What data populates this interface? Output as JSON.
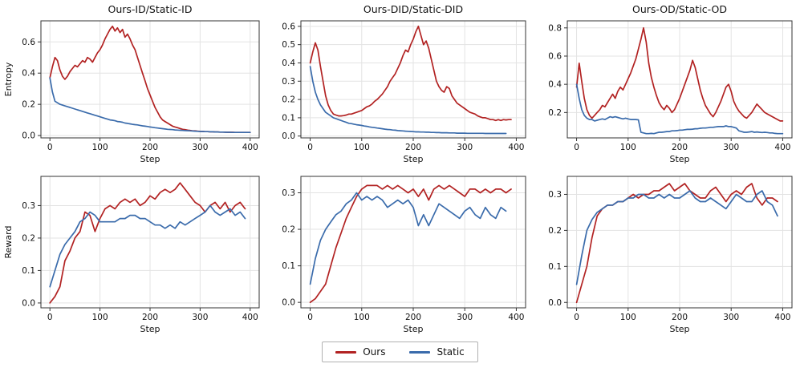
{
  "colors": {
    "ours": "#b22222",
    "static": "#3a6bab",
    "grid": "#e3e3e3",
    "frame": "#333333",
    "text": "#111111"
  },
  "legend": {
    "items": [
      {
        "label": "Ours",
        "color": "#b22222"
      },
      {
        "label": "Static",
        "color": "#3a6bab"
      }
    ]
  },
  "chart_data": [
    {
      "type": "line",
      "title": "Ours-ID/Static-ID",
      "xlabel": "Step",
      "ylabel": "Entropy",
      "xlim": [
        -18,
        418
      ],
      "ylim": [
        -0.015,
        0.735
      ],
      "xticks": [
        0,
        100,
        200,
        300,
        400
      ],
      "yticks": [
        0.0,
        0.2,
        0.4,
        0.6
      ],
      "series": [
        {
          "name": "Ours",
          "color": "#b22222",
          "x_start": 0,
          "x_step": 5,
          "values": [
            0.37,
            0.44,
            0.5,
            0.48,
            0.42,
            0.38,
            0.36,
            0.38,
            0.41,
            0.43,
            0.45,
            0.44,
            0.46,
            0.48,
            0.47,
            0.5,
            0.49,
            0.47,
            0.5,
            0.53,
            0.55,
            0.58,
            0.62,
            0.65,
            0.68,
            0.7,
            0.67,
            0.69,
            0.66,
            0.68,
            0.63,
            0.65,
            0.62,
            0.58,
            0.55,
            0.5,
            0.45,
            0.4,
            0.35,
            0.3,
            0.26,
            0.22,
            0.18,
            0.15,
            0.12,
            0.1,
            0.09,
            0.08,
            0.07,
            0.06,
            0.055,
            0.05,
            0.045,
            0.04,
            0.038,
            0.035,
            0.033,
            0.03,
            0.03,
            0.028,
            0.027,
            0.026,
            0.025,
            0.025,
            0.024,
            0.024,
            0.023,
            0.023,
            0.022,
            0.022,
            0.022,
            0.021,
            0.021,
            0.021,
            0.02,
            0.02,
            0.02,
            0.02,
            0.02,
            0.02,
            0.02
          ]
        },
        {
          "name": "Static",
          "color": "#3a6bab",
          "x_start": 0,
          "x_step": 5,
          "values": [
            0.37,
            0.28,
            0.22,
            0.21,
            0.2,
            0.195,
            0.19,
            0.185,
            0.18,
            0.175,
            0.17,
            0.165,
            0.16,
            0.155,
            0.15,
            0.145,
            0.14,
            0.135,
            0.13,
            0.125,
            0.12,
            0.115,
            0.11,
            0.105,
            0.1,
            0.098,
            0.095,
            0.09,
            0.088,
            0.085,
            0.08,
            0.078,
            0.075,
            0.072,
            0.07,
            0.068,
            0.065,
            0.062,
            0.06,
            0.058,
            0.055,
            0.053,
            0.05,
            0.048,
            0.046,
            0.044,
            0.042,
            0.04,
            0.039,
            0.038,
            0.036,
            0.035,
            0.034,
            0.033,
            0.032,
            0.031,
            0.03,
            0.029,
            0.028,
            0.027,
            0.026,
            0.026,
            0.025,
            0.025,
            0.024,
            0.024,
            0.023,
            0.023,
            0.022,
            0.022,
            0.021,
            0.021,
            0.021,
            0.02,
            0.02,
            0.02,
            0.02,
            0.02,
            0.02,
            0.02,
            0.02
          ]
        }
      ]
    },
    {
      "type": "line",
      "title": "Ours-DID/Static-DID",
      "xlabel": "Step",
      "ylabel": "",
      "xlim": [
        -18,
        418
      ],
      "ylim": [
        -0.01,
        0.63
      ],
      "xticks": [
        0,
        100,
        200,
        300,
        400
      ],
      "yticks": [
        0.0,
        0.1,
        0.2,
        0.3,
        0.4,
        0.5,
        0.6
      ],
      "series": [
        {
          "name": "Ours",
          "color": "#b22222",
          "x_start": 0,
          "x_step": 5,
          "values": [
            0.4,
            0.46,
            0.51,
            0.47,
            0.38,
            0.3,
            0.22,
            0.17,
            0.14,
            0.12,
            0.115,
            0.11,
            0.11,
            0.112,
            0.115,
            0.12,
            0.12,
            0.125,
            0.13,
            0.135,
            0.14,
            0.15,
            0.16,
            0.165,
            0.175,
            0.19,
            0.2,
            0.215,
            0.23,
            0.25,
            0.27,
            0.3,
            0.32,
            0.34,
            0.37,
            0.4,
            0.44,
            0.47,
            0.46,
            0.5,
            0.53,
            0.57,
            0.6,
            0.55,
            0.5,
            0.52,
            0.48,
            0.42,
            0.36,
            0.3,
            0.27,
            0.25,
            0.24,
            0.27,
            0.26,
            0.22,
            0.2,
            0.18,
            0.17,
            0.16,
            0.15,
            0.14,
            0.13,
            0.125,
            0.12,
            0.11,
            0.105,
            0.1,
            0.1,
            0.095,
            0.09,
            0.09,
            0.085,
            0.09,
            0.085,
            0.09,
            0.088,
            0.09,
            0.09
          ]
        },
        {
          "name": "Static",
          "color": "#3a6bab",
          "x_start": 0,
          "x_step": 5,
          "values": [
            0.38,
            0.3,
            0.24,
            0.2,
            0.17,
            0.15,
            0.13,
            0.12,
            0.11,
            0.1,
            0.095,
            0.09,
            0.085,
            0.08,
            0.075,
            0.07,
            0.068,
            0.065,
            0.062,
            0.06,
            0.058,
            0.055,
            0.053,
            0.05,
            0.048,
            0.046,
            0.044,
            0.042,
            0.04,
            0.038,
            0.036,
            0.035,
            0.033,
            0.032,
            0.03,
            0.029,
            0.028,
            0.027,
            0.026,
            0.025,
            0.024,
            0.023,
            0.023,
            0.022,
            0.022,
            0.021,
            0.021,
            0.02,
            0.02,
            0.019,
            0.019,
            0.018,
            0.018,
            0.018,
            0.017,
            0.017,
            0.017,
            0.016,
            0.016,
            0.016,
            0.016,
            0.015,
            0.015,
            0.015,
            0.015,
            0.015,
            0.015,
            0.015,
            0.014,
            0.014,
            0.014,
            0.014,
            0.014,
            0.014,
            0.014,
            0.014,
            0.014
          ]
        }
      ]
    },
    {
      "type": "line",
      "title": "Ours-OD/Static-OD",
      "xlabel": "Step",
      "ylabel": "",
      "xlim": [
        -18,
        418
      ],
      "ylim": [
        0.02,
        0.85
      ],
      "xticks": [
        0,
        100,
        200,
        300,
        400
      ],
      "yticks": [
        0.2,
        0.4,
        0.6,
        0.8
      ],
      "series": [
        {
          "name": "Ours",
          "color": "#b22222",
          "x_start": 0,
          "x_step": 5,
          "values": [
            0.38,
            0.55,
            0.42,
            0.3,
            0.22,
            0.18,
            0.16,
            0.18,
            0.2,
            0.22,
            0.25,
            0.24,
            0.27,
            0.3,
            0.33,
            0.3,
            0.35,
            0.38,
            0.36,
            0.4,
            0.44,
            0.48,
            0.53,
            0.58,
            0.65,
            0.72,
            0.8,
            0.7,
            0.55,
            0.45,
            0.38,
            0.32,
            0.27,
            0.24,
            0.22,
            0.25,
            0.23,
            0.2,
            0.22,
            0.26,
            0.3,
            0.35,
            0.4,
            0.45,
            0.5,
            0.57,
            0.52,
            0.44,
            0.36,
            0.3,
            0.25,
            0.22,
            0.19,
            0.17,
            0.2,
            0.24,
            0.28,
            0.33,
            0.38,
            0.4,
            0.35,
            0.28,
            0.24,
            0.21,
            0.19,
            0.17,
            0.16,
            0.18,
            0.2,
            0.23,
            0.26,
            0.24,
            0.22,
            0.2,
            0.19,
            0.18,
            0.17,
            0.16,
            0.15,
            0.14,
            0.14
          ]
        },
        {
          "name": "Static",
          "color": "#3a6bab",
          "x_start": 0,
          "x_step": 5,
          "values": [
            0.4,
            0.3,
            0.22,
            0.18,
            0.16,
            0.15,
            0.15,
            0.14,
            0.145,
            0.15,
            0.155,
            0.15,
            0.16,
            0.17,
            0.165,
            0.17,
            0.165,
            0.16,
            0.155,
            0.16,
            0.155,
            0.15,
            0.15,
            0.15,
            0.148,
            0.06,
            0.055,
            0.05,
            0.05,
            0.052,
            0.05,
            0.055,
            0.06,
            0.06,
            0.062,
            0.065,
            0.065,
            0.07,
            0.07,
            0.072,
            0.075,
            0.075,
            0.078,
            0.08,
            0.08,
            0.082,
            0.085,
            0.085,
            0.088,
            0.09,
            0.09,
            0.092,
            0.095,
            0.095,
            0.098,
            0.1,
            0.1,
            0.1,
            0.105,
            0.1,
            0.1,
            0.095,
            0.09,
            0.07,
            0.065,
            0.06,
            0.06,
            0.062,
            0.065,
            0.06,
            0.062,
            0.06,
            0.058,
            0.06,
            0.058,
            0.055,
            0.055,
            0.052,
            0.05,
            0.05,
            0.05
          ]
        }
      ]
    },
    {
      "type": "line",
      "title": "",
      "xlabel": "Step",
      "ylabel": "Reward",
      "xlim": [
        -18,
        418
      ],
      "ylim": [
        -0.015,
        0.39
      ],
      "xticks": [
        0,
        100,
        200,
        300,
        400
      ],
      "yticks": [
        0.0,
        0.1,
        0.2,
        0.3
      ],
      "series": [
        {
          "name": "Ours",
          "color": "#b22222",
          "x_start": 0,
          "x_step": 10,
          "values": [
            0.0,
            0.02,
            0.05,
            0.13,
            0.16,
            0.2,
            0.22,
            0.28,
            0.27,
            0.22,
            0.26,
            0.29,
            0.3,
            0.29,
            0.31,
            0.32,
            0.31,
            0.32,
            0.3,
            0.31,
            0.33,
            0.32,
            0.34,
            0.35,
            0.34,
            0.35,
            0.37,
            0.35,
            0.33,
            0.31,
            0.3,
            0.28,
            0.3,
            0.31,
            0.29,
            0.31,
            0.28,
            0.3,
            0.31,
            0.29
          ]
        },
        {
          "name": "Static",
          "color": "#3a6bab",
          "x_start": 0,
          "x_step": 10,
          "values": [
            0.05,
            0.1,
            0.15,
            0.18,
            0.2,
            0.22,
            0.25,
            0.26,
            0.28,
            0.27,
            0.25,
            0.25,
            0.25,
            0.25,
            0.26,
            0.26,
            0.27,
            0.27,
            0.26,
            0.26,
            0.25,
            0.24,
            0.24,
            0.23,
            0.24,
            0.23,
            0.25,
            0.24,
            0.25,
            0.26,
            0.27,
            0.28,
            0.3,
            0.28,
            0.27,
            0.28,
            0.29,
            0.27,
            0.28,
            0.26
          ]
        }
      ]
    },
    {
      "type": "line",
      "title": "",
      "xlabel": "Step",
      "ylabel": "",
      "xlim": [
        -18,
        418
      ],
      "ylim": [
        -0.015,
        0.345
      ],
      "xticks": [
        0,
        100,
        200,
        300,
        400
      ],
      "yticks": [
        0.0,
        0.1,
        0.2,
        0.3
      ],
      "series": [
        {
          "name": "Ours",
          "color": "#b22222",
          "x_start": 0,
          "x_step": 10,
          "values": [
            0.0,
            0.01,
            0.03,
            0.05,
            0.1,
            0.15,
            0.19,
            0.23,
            0.26,
            0.29,
            0.31,
            0.32,
            0.32,
            0.32,
            0.31,
            0.32,
            0.31,
            0.32,
            0.31,
            0.3,
            0.31,
            0.29,
            0.31,
            0.28,
            0.31,
            0.32,
            0.31,
            0.32,
            0.31,
            0.3,
            0.29,
            0.31,
            0.31,
            0.3,
            0.31,
            0.3,
            0.31,
            0.31,
            0.3,
            0.31
          ]
        },
        {
          "name": "Static",
          "color": "#3a6bab",
          "x_start": 0,
          "x_step": 10,
          "values": [
            0.05,
            0.12,
            0.17,
            0.2,
            0.22,
            0.24,
            0.25,
            0.27,
            0.28,
            0.3,
            0.28,
            0.29,
            0.28,
            0.29,
            0.28,
            0.26,
            0.27,
            0.28,
            0.27,
            0.28,
            0.26,
            0.21,
            0.24,
            0.21,
            0.24,
            0.27,
            0.26,
            0.25,
            0.24,
            0.23,
            0.25,
            0.26,
            0.24,
            0.23,
            0.26,
            0.24,
            0.23,
            0.26,
            0.25
          ]
        }
      ]
    },
    {
      "type": "line",
      "title": "",
      "xlabel": "Step",
      "ylabel": "",
      "xlim": [
        -18,
        418
      ],
      "ylim": [
        -0.015,
        0.35
      ],
      "xticks": [
        0,
        100,
        200,
        300,
        400
      ],
      "yticks": [
        0.0,
        0.1,
        0.2,
        0.3
      ],
      "series": [
        {
          "name": "Ours",
          "color": "#b22222",
          "x_start": 0,
          "x_step": 10,
          "values": [
            0.0,
            0.05,
            0.1,
            0.18,
            0.24,
            0.26,
            0.27,
            0.27,
            0.28,
            0.28,
            0.29,
            0.3,
            0.29,
            0.3,
            0.3,
            0.31,
            0.31,
            0.32,
            0.33,
            0.31,
            0.32,
            0.33,
            0.31,
            0.3,
            0.29,
            0.29,
            0.31,
            0.32,
            0.3,
            0.28,
            0.3,
            0.31,
            0.3,
            0.32,
            0.33,
            0.29,
            0.27,
            0.29,
            0.29,
            0.28
          ]
        },
        {
          "name": "Static",
          "color": "#3a6bab",
          "x_start": 0,
          "x_step": 10,
          "values": [
            0.05,
            0.13,
            0.2,
            0.23,
            0.25,
            0.26,
            0.27,
            0.27,
            0.28,
            0.28,
            0.29,
            0.29,
            0.3,
            0.3,
            0.29,
            0.29,
            0.3,
            0.29,
            0.3,
            0.29,
            0.29,
            0.3,
            0.31,
            0.29,
            0.28,
            0.28,
            0.29,
            0.28,
            0.27,
            0.26,
            0.28,
            0.3,
            0.29,
            0.28,
            0.28,
            0.3,
            0.31,
            0.28,
            0.27,
            0.24
          ]
        }
      ]
    }
  ]
}
